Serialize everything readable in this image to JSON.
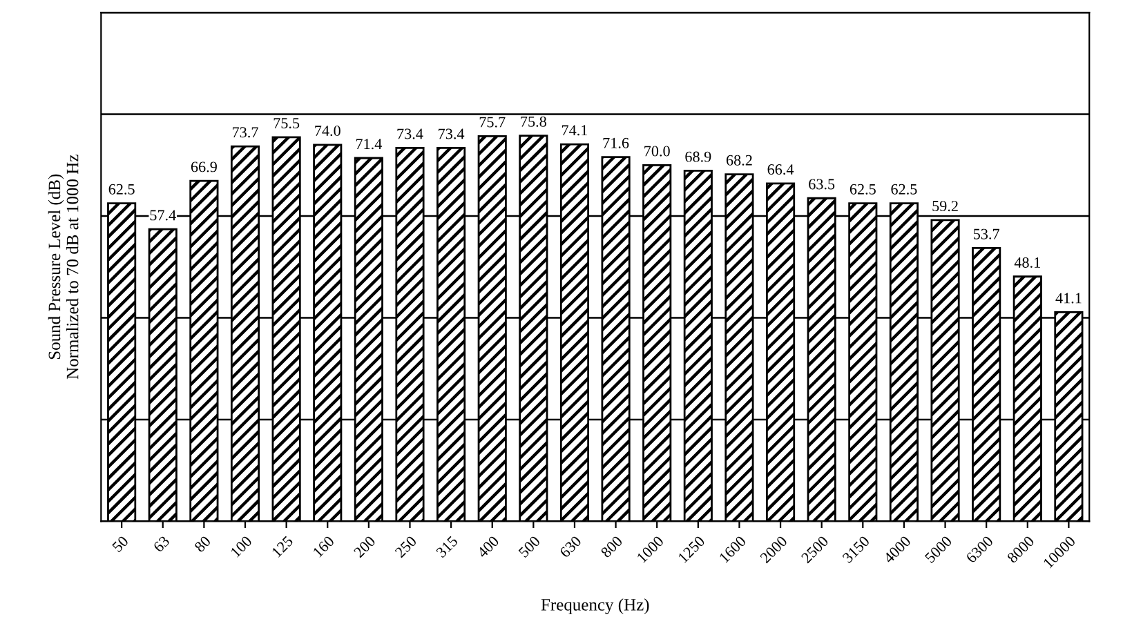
{
  "chart_data": {
    "type": "bar",
    "xlabel": "Frequency (Hz)",
    "ylabel": "Sound Pressure Level (dB)\nNormalized to 70 dB at 1000 Hz",
    "categories": [
      "50",
      "63",
      "80",
      "100",
      "125",
      "160",
      "200",
      "250",
      "315",
      "400",
      "500",
      "630",
      "800",
      "1000",
      "1250",
      "1600",
      "2000",
      "2500",
      "3150",
      "4000",
      "5000",
      "6300",
      "8000",
      "10000"
    ],
    "values": [
      62.5,
      57.4,
      66.9,
      73.7,
      75.5,
      74.0,
      71.4,
      73.4,
      73.4,
      75.7,
      75.8,
      74.1,
      71.6,
      70.0,
      68.9,
      68.2,
      66.4,
      63.5,
      62.5,
      62.5,
      59.2,
      53.7,
      48.1,
      41.1
    ],
    "color": "#000000",
    "ylim": [
      0,
      100
    ],
    "yticks": [
      {
        "value": 0,
        "label": null
      },
      {
        "value": 20,
        "label": null
      },
      {
        "value": 40,
        "label": null
      },
      {
        "value": 60,
        "label": null
      },
      {
        "value": 80,
        "label": null
      },
      {
        "value": 100,
        "label": null
      }
    ],
    "grid": "y",
    "tick_labels": "x",
    "value_labels": [
      "62.5",
      "57.4",
      "66.9",
      "73.7",
      "75.5",
      "74.0",
      "71.4",
      "73.4",
      "73.4",
      "75.7",
      "75.8",
      "74.1",
      "71.6",
      "70.0",
      "68.9",
      "68.2",
      "66.4",
      "63.5",
      "62.5",
      "62.5",
      "59.2",
      "53.7",
      "48.1",
      "41.1"
    ]
  }
}
